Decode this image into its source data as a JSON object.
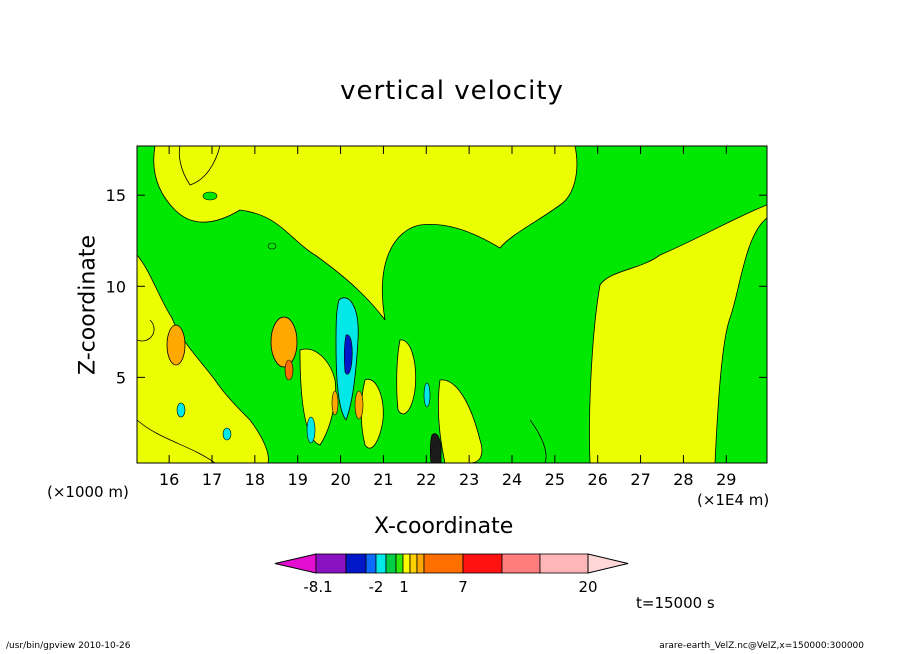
{
  "chart_data": {
    "type": "heatmap",
    "title": "vertical velocity",
    "xlabel": "X-coordinate",
    "ylabel": "Z-coordinate",
    "x_unit_left": "(×1000 m)",
    "x_unit_right": "(×1E4 m)",
    "xlim": [
      15.25,
      29.95
    ],
    "ylim": [
      0.3,
      17.7
    ],
    "x_ticks": [
      "16",
      "17",
      "18",
      "19",
      "20",
      "21",
      "22",
      "23",
      "24",
      "25",
      "26",
      "27",
      "28",
      "29"
    ],
    "y_ticks": [
      "5",
      "10",
      "15"
    ],
    "x_tick_values": [
      16,
      17,
      18,
      19,
      20,
      21,
      22,
      23,
      24,
      25,
      26,
      27,
      28,
      29
    ],
    "y_tick_values": [
      5,
      10,
      15
    ],
    "colorbar": {
      "labels": [
        "-8.1",
        "-2",
        "1",
        "7",
        "20"
      ],
      "colors": [
        "#e30ecf",
        "#8b12c0",
        "#0018c8",
        "#0c6cff",
        "#00e8e8",
        "#00cf46",
        "#33e800",
        "#fffc00",
        "#ffd000",
        "#ffa800",
        "#ff6f00",
        "#ff1212",
        "#ff7d7d",
        "#ffb6b6",
        "#ffd7d7"
      ]
    },
    "regions": {
      "background": "green (near zero)",
      "upper_band": "yellow (weak upward)",
      "right_region": "yellow (weak upward)",
      "min_near_x": "20 x1E4 m, z 7 (negative, cyan/blue)",
      "max_near_x": "22.2 x1E4 m, z 1 (positive, dark)"
    }
  },
  "labels": {
    "time": "t=15000 s",
    "footer_left": "/usr/bin/gpview   2010-10-26",
    "footer_right": "arare-earth_VelZ.nc@VelZ,x=150000:300000"
  }
}
